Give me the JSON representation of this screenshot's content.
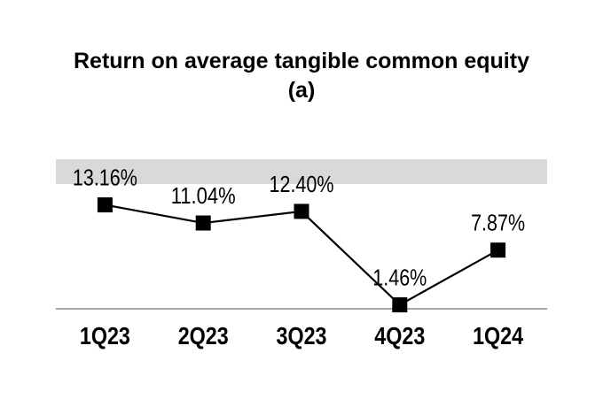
{
  "page": {
    "background_color": "#ffffff"
  },
  "chart_data": {
    "type": "line",
    "title": "Return on average tangible common equity (a)",
    "categories": [
      "1Q23",
      "2Q23",
      "3Q23",
      "4Q23",
      "1Q24"
    ],
    "values": [
      13.16,
      11.04,
      12.4,
      1.46,
      7.87
    ],
    "data_labels": [
      "13.16%",
      "11.04%",
      "12.40%",
      "1.46%",
      "7.87%"
    ],
    "marker": "square",
    "legend": "none",
    "grid": "off",
    "y_axis": {
      "min": 1.0,
      "plot_top_value": 18.5,
      "tick_labels_visible": false
    },
    "highlight_band": {
      "from_value": 15.6,
      "to_value": 18.5,
      "color": "#d9d9d9"
    },
    "colors": {
      "line": "#000000",
      "marker": "#000000",
      "axis_line": "#a6a6a6",
      "data_label_text": "#000000",
      "axis_label_text": "#000000",
      "title_text": "#000000"
    }
  }
}
